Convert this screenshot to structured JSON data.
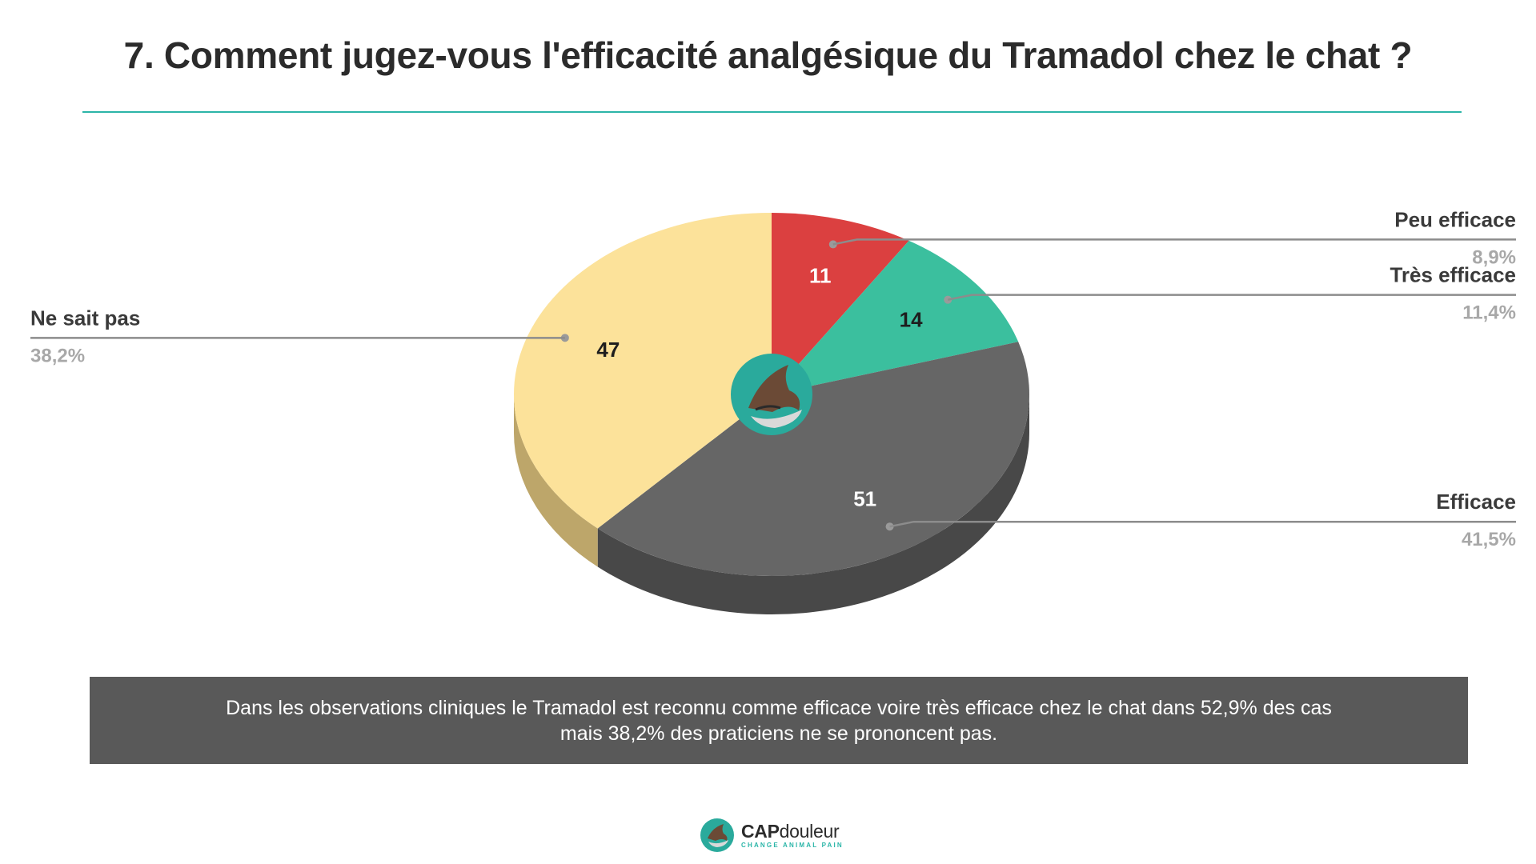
{
  "title": "7. Comment jugez-vous l'efficacité analgésique du Tramadol chez le chat ?",
  "chart_data": {
    "type": "pie",
    "title": "",
    "slices": [
      {
        "label": "Peu efficace",
        "value": 11,
        "percent": "8,9%",
        "color": "#db4040",
        "side_color": "#a02a2a",
        "label_color": "#ffffff"
      },
      {
        "label": "Très efficace",
        "value": 14,
        "percent": "11,4%",
        "color": "#3bbf9e",
        "side_color": "#2a8a72",
        "label_color": "#1e1e1e"
      },
      {
        "label": "Efficace",
        "value": 51,
        "percent": "41,5%",
        "color": "#666666",
        "side_color": "#484848",
        "label_color": "#ffffff"
      },
      {
        "label": "Ne sait pas",
        "value": 47,
        "percent": "38,2%",
        "color": "#fce29a",
        "side_color": "#bda66a",
        "label_color": "#1e1e1e"
      }
    ],
    "start": "top",
    "direction": "clockwise",
    "style": "3d"
  },
  "summary": {
    "line1": "Dans les observations cliniques le Tramadol est reconnu comme efficace voire très efficace chez le chat dans 52,9% des cas",
    "line2": "mais 38,2% des praticiens ne se prononcent pas."
  },
  "footer": {
    "brand_bold": "CAP",
    "brand_thin": "douleur",
    "tagline": "CHANGE ANIMAL PAIN"
  },
  "colors": {
    "accent": "#2bb5a8",
    "summary_bg": "#595959"
  }
}
